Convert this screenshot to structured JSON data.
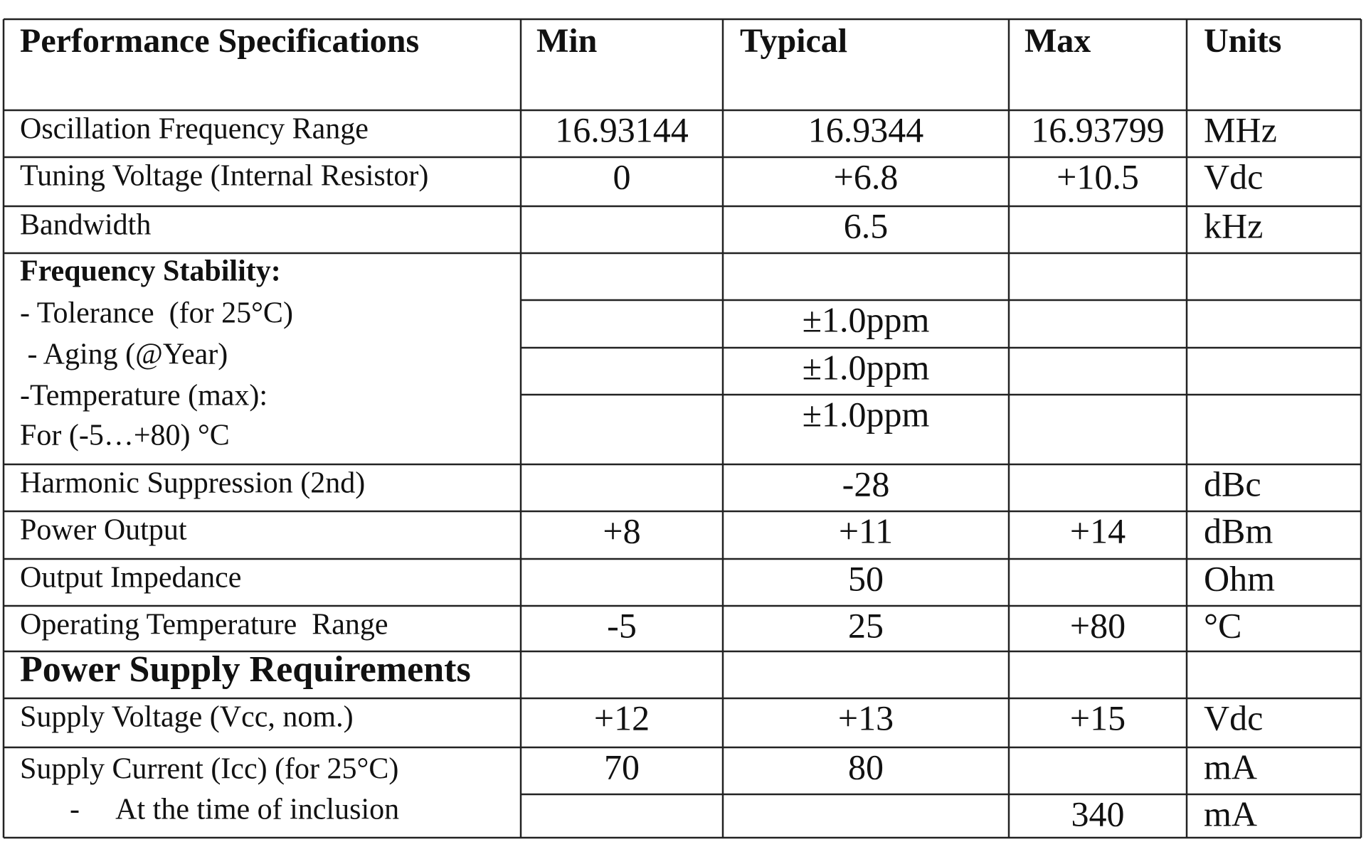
{
  "table": {
    "header": [
      "Performance Specifications",
      "Min",
      "Typical",
      "Max",
      "Units"
    ],
    "rows": [
      {
        "label": [
          "Oscillation Frequency Range"
        ],
        "cells": [
          [
            "16.93144",
            "16.9344",
            "16.93799",
            "MHz"
          ]
        ]
      },
      {
        "label": [
          "Tuning Voltage (Internal Resistor)"
        ],
        "cells": [
          [
            "0",
            "+6.8",
            "+10.5",
            "Vdc"
          ]
        ]
      },
      {
        "label": [
          "Bandwidth"
        ],
        "cells": [
          [
            null,
            "6.5",
            null,
            "kHz"
          ]
        ]
      },
      {
        "label": [
          "Frequency Stability:",
          "- Tolerance  (for 25°C)",
          " - Aging (@Year)",
          "-Temperature (max):",
          "For (-5…+80) °C"
        ],
        "cells": [
          [
            null,
            null,
            null,
            null
          ],
          [
            null,
            "±1.0ppm",
            null,
            null
          ],
          [
            null,
            "±1.0ppm",
            null,
            null
          ],
          [
            null,
            "±1.0ppm",
            null,
            null
          ]
        ]
      },
      {
        "label": [
          "Harmonic Suppression (2nd)"
        ],
        "cells": [
          [
            null,
            "-28",
            null,
            "dBc"
          ]
        ]
      },
      {
        "label": [
          "Power Output"
        ],
        "cells": [
          [
            "+8",
            "+11",
            "+14",
            "dBm"
          ]
        ]
      },
      {
        "label": [
          "Output Impedance"
        ],
        "cells": [
          [
            null,
            "50",
            null,
            "Ohm"
          ]
        ]
      },
      {
        "label": [
          "Operating Temperature  Range"
        ],
        "cells": [
          [
            "-5",
            "25",
            "+80",
            "°C"
          ]
        ]
      },
      {
        "label": [
          "Power Supply Requirements"
        ],
        "cells": [
          [
            null,
            null,
            null,
            null
          ]
        ]
      },
      {
        "label": [
          "Supply Voltage (Vcc, nom.)"
        ],
        "cells": [
          [
            "+12",
            "+13",
            "+15",
            "Vdc"
          ]
        ]
      },
      {
        "label": [
          "Supply Current (Icc) (for 25°C)",
          "-     At the time of inclusion"
        ],
        "cells": [
          [
            "70",
            "80",
            null,
            "mA"
          ],
          [
            null,
            null,
            "340",
            "mA"
          ]
        ]
      }
    ]
  }
}
